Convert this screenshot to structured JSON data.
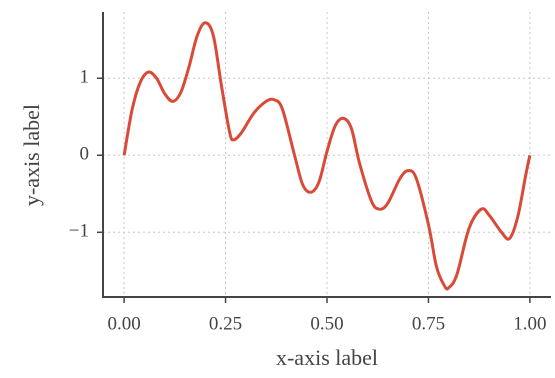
{
  "chart_data": {
    "type": "line",
    "xlabel": "x-axis label",
    "ylabel": "y-axis label",
    "x": [
      0,
      0.02,
      0.04,
      0.06,
      0.08,
      0.1,
      0.12,
      0.14,
      0.16,
      0.18,
      0.2,
      0.22,
      0.24,
      0.26,
      0.27,
      0.29,
      0.32,
      0.35,
      0.37,
      0.39,
      0.42,
      0.44,
      0.46,
      0.48,
      0.5,
      0.52,
      0.54,
      0.56,
      0.58,
      0.61,
      0.63,
      0.65,
      0.68,
      0.7,
      0.72,
      0.75,
      0.77,
      0.79,
      0.8,
      0.82,
      0.85,
      0.88,
      0.9,
      0.93,
      0.95,
      0.97,
      0.99,
      1.0
    ],
    "series": [
      {
        "color": "#d94a38",
        "values": [
          0,
          0.6,
          0.95,
          1.08,
          1.0,
          0.8,
          0.7,
          0.82,
          1.15,
          1.55,
          1.72,
          1.55,
          0.9,
          0.3,
          0.2,
          0.3,
          0.55,
          0.7,
          0.72,
          0.6,
          0.0,
          -0.38,
          -0.48,
          -0.35,
          0.05,
          0.38,
          0.48,
          0.35,
          -0.1,
          -0.6,
          -0.7,
          -0.62,
          -0.3,
          -0.2,
          -0.3,
          -0.9,
          -1.45,
          -1.7,
          -1.72,
          -1.55,
          -0.95,
          -0.7,
          -0.78,
          -1.0,
          -1.08,
          -0.8,
          -0.25,
          0
        ]
      }
    ],
    "xlim": [
      -0.052,
      1.052
    ],
    "ylim": [
      -1.84,
      1.86
    ],
    "xticks": [
      {
        "value": 0,
        "label": "0.00"
      },
      {
        "value": 0.25,
        "label": "0.25"
      },
      {
        "value": 0.5,
        "label": "0.50"
      },
      {
        "value": 0.75,
        "label": "0.75"
      },
      {
        "value": 1,
        "label": "1.00"
      }
    ],
    "yticks": [
      {
        "value": -1,
        "label": "−1"
      },
      0,
      1
    ],
    "grid": true
  }
}
